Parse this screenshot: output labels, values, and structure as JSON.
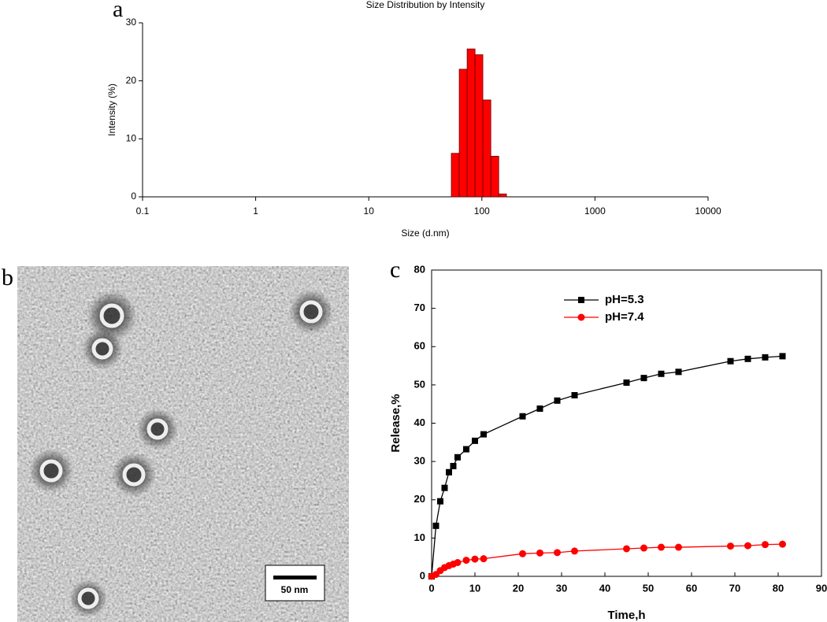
{
  "chart_data": [
    {
      "type": "histogram",
      "panel": "a",
      "title": "Size Distribution by Intensity",
      "x_label": "Size (d.nm)",
      "y_label": "Intensity (%)",
      "log_x": true,
      "bins": [
        53.7,
        63.1,
        74.1,
        87,
        102,
        120,
        141,
        165
      ],
      "values": [
        7.5,
        22,
        25.5,
        24.5,
        16.7,
        7,
        0.5
      ],
      "color": "#ff0000",
      "xlim": [
        0.1,
        10000
      ],
      "xticks": [
        0.1,
        1,
        10,
        100,
        1000,
        10000
      ],
      "ylim": [
        0,
        30
      ],
      "yticks": [
        0,
        10,
        20,
        30
      ]
    },
    {
      "type": "line",
      "panel": "c",
      "x_label": "Time,h",
      "y_label": "Release,%",
      "legend": "upper left",
      "series": [
        {
          "name": "pH=5.3",
          "color": "#000000",
          "marker": "square",
          "x": [
            0,
            1,
            2,
            3,
            4,
            5,
            6,
            8,
            10,
            12,
            21,
            25,
            29,
            33,
            45,
            49,
            53,
            57,
            69,
            73,
            77,
            81
          ],
          "values": [
            0,
            13.2,
            19.6,
            23.1,
            27.2,
            28.8,
            31.1,
            33.2,
            35.4,
            37.1,
            41.8,
            43.8,
            45.9,
            47.3,
            50.6,
            51.8,
            52.9,
            53.4,
            56.2,
            56.8,
            57.2,
            57.5
          ]
        },
        {
          "name": "pH=7.4",
          "color": "#ff0000",
          "marker": "circle",
          "x": [
            0,
            1,
            2,
            3,
            4,
            5,
            6,
            8,
            10,
            12,
            21,
            25,
            29,
            33,
            45,
            49,
            53,
            57,
            69,
            73,
            77,
            81
          ],
          "values": [
            0,
            0.5,
            1.5,
            2.3,
            2.8,
            3.2,
            3.6,
            4.2,
            4.5,
            4.6,
            5.9,
            6.1,
            6.2,
            6.6,
            7.2,
            7.4,
            7.6,
            7.6,
            7.9,
            8.0,
            8.3,
            8.4
          ]
        }
      ],
      "xlim": [
        0,
        90
      ],
      "xticks": [
        0,
        10,
        20,
        30,
        40,
        50,
        60,
        70,
        80,
        90
      ],
      "ylim": [
        0,
        80
      ],
      "yticks": [
        0,
        10,
        20,
        30,
        40,
        50,
        60,
        70,
        80
      ]
    }
  ],
  "image_panel": {
    "panel": "b",
    "scale_bar": "50 nm"
  }
}
